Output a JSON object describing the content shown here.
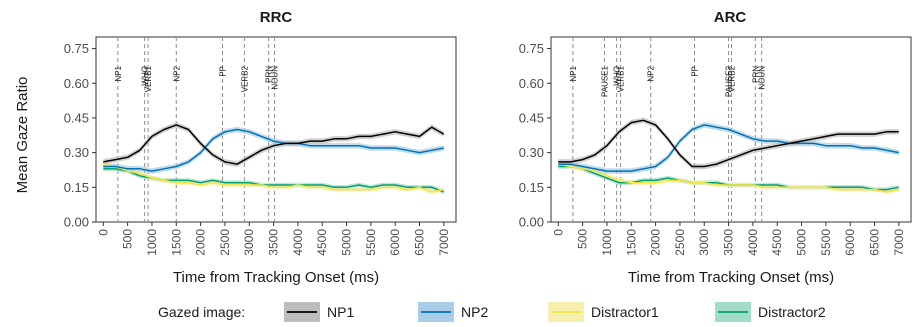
{
  "chart_data": {
    "type": "line",
    "ylabel": "Mean Gaze Ratio",
    "xlabel": "Time from Tracking Onset (ms)",
    "ylim": [
      0.0,
      0.8
    ],
    "yticks": [
      0.0,
      0.15,
      0.3,
      0.45,
      0.6,
      0.75
    ],
    "ytick_labels": [
      "0.00",
      "0.15",
      "0.30",
      "0.45",
      "0.60",
      "0.75"
    ],
    "xlim": [
      -150,
      7250
    ],
    "xticks": [
      0,
      500,
      1000,
      1500,
      2000,
      2500,
      3000,
      3500,
      4000,
      4500,
      5000,
      5500,
      6000,
      6500,
      7000
    ],
    "xtick_labels": [
      "0",
      "500",
      "1000",
      "1500",
      "2000",
      "2500",
      "3000",
      "3500",
      "4000",
      "4500",
      "5000",
      "5500",
      "6000",
      "6500",
      "7000"
    ],
    "grid": false,
    "legend": {
      "title": "Gazed image:",
      "position": "bottom",
      "entries": [
        "NP1",
        "NP2",
        "Distractor1",
        "Distractor2"
      ]
    },
    "series_colors": {
      "NP1": "#000000",
      "NP2": "#0072B2",
      "Distractor1": "#F0E442",
      "Distractor2": "#009E73"
    },
    "series_fill_colors": {
      "NP1": "#bdbdbd",
      "NP2": "#a9cde6",
      "Distractor1": "#f6efb0",
      "Distractor2": "#a3dcc8"
    },
    "panels": [
      {
        "title": "RRC",
        "events": [
          {
            "label": "NP1",
            "x": 300
          },
          {
            "label": "WHO",
            "x": 850
          },
          {
            "label": "VERB1",
            "x": 920
          },
          {
            "label": "NP2",
            "x": 1500
          },
          {
            "label": "PP",
            "x": 2450
          },
          {
            "label": "VERB2",
            "x": 2900
          },
          {
            "label": "PRN",
            "x": 3400
          },
          {
            "label": "NOUN",
            "x": 3520
          }
        ],
        "x": [
          0,
          250,
          500,
          750,
          1000,
          1250,
          1500,
          1750,
          2000,
          2250,
          2500,
          2750,
          3000,
          3250,
          3500,
          3750,
          4000,
          4250,
          4500,
          4750,
          5000,
          5250,
          5500,
          5750,
          6000,
          6250,
          6500,
          6750,
          7000
        ],
        "series": [
          {
            "name": "NP1",
            "values": [
              0.26,
              0.27,
              0.28,
              0.31,
              0.37,
              0.4,
              0.42,
              0.4,
              0.34,
              0.29,
              0.26,
              0.25,
              0.28,
              0.31,
              0.33,
              0.34,
              0.34,
              0.35,
              0.35,
              0.36,
              0.36,
              0.37,
              0.37,
              0.38,
              0.39,
              0.38,
              0.37,
              0.41,
              0.38
            ],
            "band": 0.012
          },
          {
            "name": "NP2",
            "values": [
              0.24,
              0.24,
              0.23,
              0.23,
              0.22,
              0.23,
              0.24,
              0.26,
              0.3,
              0.36,
              0.39,
              0.4,
              0.39,
              0.37,
              0.35,
              0.34,
              0.34,
              0.33,
              0.33,
              0.33,
              0.33,
              0.33,
              0.32,
              0.32,
              0.32,
              0.31,
              0.3,
              0.31,
              0.32
            ],
            "band": 0.012
          },
          {
            "name": "Distractor1",
            "values": [
              0.25,
              0.24,
              0.22,
              0.21,
              0.19,
              0.18,
              0.17,
              0.17,
              0.16,
              0.17,
              0.16,
              0.16,
              0.16,
              0.16,
              0.15,
              0.15,
              0.16,
              0.15,
              0.15,
              0.14,
              0.14,
              0.14,
              0.14,
              0.15,
              0.15,
              0.14,
              0.15,
              0.13,
              0.14
            ],
            "band": 0.01
          },
          {
            "name": "Distractor2",
            "values": [
              0.23,
              0.23,
              0.22,
              0.2,
              0.19,
              0.18,
              0.18,
              0.18,
              0.17,
              0.18,
              0.17,
              0.17,
              0.17,
              0.16,
              0.16,
              0.16,
              0.16,
              0.16,
              0.16,
              0.15,
              0.15,
              0.16,
              0.15,
              0.16,
              0.16,
              0.15,
              0.15,
              0.15,
              0.13
            ],
            "band": 0.01
          }
        ]
      },
      {
        "title": "ARC",
        "events": [
          {
            "label": "NP1",
            "x": 300
          },
          {
            "label": "PAUSE1",
            "x": 950
          },
          {
            "label": "WHO",
            "x": 1200
          },
          {
            "label": "VERB1",
            "x": 1280
          },
          {
            "label": "NP2",
            "x": 1900
          },
          {
            "label": "PP",
            "x": 2800
          },
          {
            "label": "PAUSE2",
            "x": 3500
          },
          {
            "label": "VERB2",
            "x": 3560
          },
          {
            "label": "PRN",
            "x": 4050
          },
          {
            "label": "NOUN",
            "x": 4180
          }
        ],
        "x": [
          0,
          250,
          500,
          750,
          1000,
          1250,
          1500,
          1750,
          2000,
          2250,
          2500,
          2750,
          3000,
          3250,
          3500,
          3750,
          4000,
          4250,
          4500,
          4750,
          5000,
          5250,
          5500,
          5750,
          6000,
          6250,
          6500,
          6750,
          7000
        ],
        "series": [
          {
            "name": "NP1",
            "values": [
              0.26,
              0.26,
              0.27,
              0.29,
              0.33,
              0.39,
              0.43,
              0.44,
              0.42,
              0.36,
              0.29,
              0.24,
              0.24,
              0.25,
              0.27,
              0.29,
              0.31,
              0.32,
              0.33,
              0.34,
              0.35,
              0.36,
              0.37,
              0.38,
              0.38,
              0.38,
              0.38,
              0.39,
              0.39
            ],
            "band": 0.012
          },
          {
            "name": "NP2",
            "values": [
              0.25,
              0.25,
              0.24,
              0.23,
              0.22,
              0.22,
              0.22,
              0.23,
              0.24,
              0.28,
              0.35,
              0.4,
              0.42,
              0.41,
              0.4,
              0.38,
              0.36,
              0.35,
              0.35,
              0.34,
              0.34,
              0.34,
              0.33,
              0.33,
              0.33,
              0.32,
              0.32,
              0.31,
              0.3
            ],
            "band": 0.012
          },
          {
            "name": "Distractor1",
            "values": [
              0.25,
              0.24,
              0.23,
              0.22,
              0.2,
              0.18,
              0.17,
              0.17,
              0.17,
              0.18,
              0.18,
              0.17,
              0.17,
              0.16,
              0.16,
              0.16,
              0.16,
              0.15,
              0.15,
              0.15,
              0.15,
              0.15,
              0.15,
              0.14,
              0.14,
              0.14,
              0.14,
              0.13,
              0.14
            ],
            "band": 0.01
          },
          {
            "name": "Distractor2",
            "values": [
              0.24,
              0.24,
              0.23,
              0.21,
              0.19,
              0.17,
              0.17,
              0.18,
              0.18,
              0.19,
              0.18,
              0.17,
              0.17,
              0.17,
              0.16,
              0.16,
              0.16,
              0.16,
              0.16,
              0.15,
              0.15,
              0.15,
              0.15,
              0.15,
              0.15,
              0.15,
              0.14,
              0.14,
              0.15
            ],
            "band": 0.01
          }
        ]
      }
    ]
  }
}
